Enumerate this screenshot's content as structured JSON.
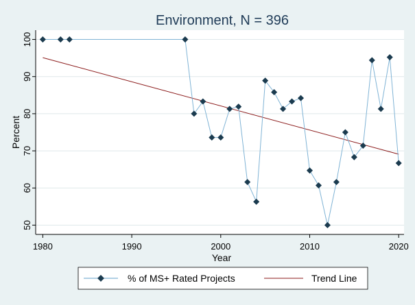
{
  "chart_data": {
    "type": "line",
    "title": "Environment, N = 396",
    "xlabel": "Year",
    "ylabel": "Percent",
    "xlim": [
      1980,
      2020
    ],
    "ylim": [
      50,
      100
    ],
    "xticks": [
      1980,
      1990,
      2000,
      2010,
      2020
    ],
    "yticks": [
      50,
      60,
      70,
      80,
      90,
      100
    ],
    "grid": true,
    "legend_position": "bottom",
    "series": [
      {
        "name": "% of MS+ Rated Projects",
        "style": "line-with-markers",
        "color": "#7fb3d5",
        "marker_color": "#1b3b4f",
        "x": [
          1980,
          1982,
          1983,
          1996,
          1997,
          1998,
          1999,
          2000,
          2001,
          2002,
          2003,
          2004,
          2005,
          2006,
          2007,
          2008,
          2009,
          2010,
          2011,
          2012,
          2013,
          2014,
          2015,
          2016,
          2017,
          2018,
          2019,
          2020
        ],
        "y": [
          100,
          100,
          100,
          100,
          80,
          83.3,
          73.6,
          73.6,
          81.3,
          81.9,
          61.6,
          56.3,
          88.9,
          85.8,
          81.3,
          83.3,
          84.2,
          64.7,
          60.7,
          50,
          61.6,
          75,
          68.3,
          71.4,
          94.4,
          81.3,
          95.2,
          66.7
        ]
      },
      {
        "name": "Trend Line",
        "style": "line",
        "color": "#8b1a1a",
        "x": [
          1980,
          2020
        ],
        "y": [
          95.1,
          69.1
        ]
      }
    ]
  },
  "colors": {
    "background": "#eaf2f3",
    "plot_background": "#ffffff",
    "title": "#1f3b57",
    "gridline": "#dfe8ea"
  }
}
